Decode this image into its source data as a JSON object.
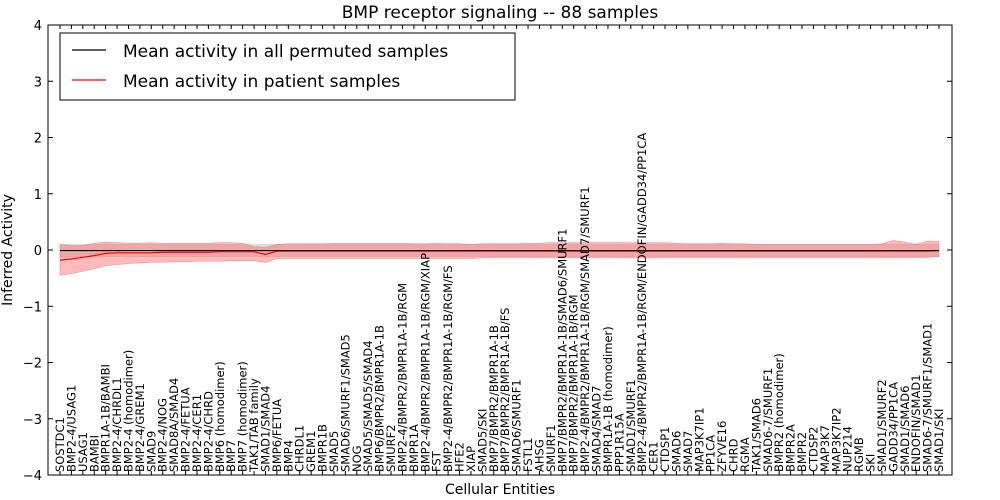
{
  "chart_data": {
    "type": "line",
    "title": "BMP receptor signaling -- 88 samples",
    "xlabel": "Cellular Entities",
    "ylabel": "Inferred Activity",
    "ylim": [
      -4,
      4
    ],
    "yticks": [
      -4,
      -3,
      -2,
      -1,
      0,
      1,
      2,
      3,
      4
    ],
    "legend_position": "top-left",
    "categories": [
      "SOSTDC1",
      "BMP2-4/USAG1",
      "USAG1",
      "BAMBI",
      "BMPR1A-1B/BAMBI",
      "BMP2-4/CHRDL1",
      "BMP2-4 (homodimer)",
      "BMP2-4/GREM1",
      "SMAD9",
      "BMP2-4/NOG",
      "SMAD8A/SMAD4",
      "BMP2-4/FETUA",
      "BMP2-4/CER1",
      "BMP2-4/CHRD",
      "BMP6 (homodimer)",
      "BMP7",
      "BMP7 (homodimer)",
      "TAK1/TAB family",
      "SMAD1/SMAD4",
      "BMP6/FETUA",
      "BMP4",
      "CHRDL1",
      "GREM1",
      "BMPR1B",
      "SMAD5",
      "SMAD6/SMURF1/SMAD5",
      "NOG",
      "SMAD5/SMAD5/SMAD4",
      "BMP6/BMPR2/BMPR1A-1B",
      "SMURF2",
      "BMP2-4/BMPR2/BMPR1A-1B/RGM",
      "BMPR1A",
      "BMP2-4/BMPR2/BMPR1A-1B/RGM/XIAP",
      "FST",
      "BMP2-4/BMPR2/BMPR1A-1B/RGM/FS",
      "HFE2",
      "XIAP",
      "SMAD5/SKI",
      "BMP7/BMPR2/BMPR1A-1B",
      "BMP7/BMPR2/BMPR1A-1B/FS",
      "SMAD6/SMURF1",
      "FSTL1",
      "AHSG",
      "SMURF1",
      "BMP7/BMPR2/BMPR1A-1B/SMAD6/SMURF1",
      "BMP7/BMPR2/BMPR1A-1B/RGM",
      "BMP2-4/BMPR2/BMPR1A-1B/RGM/SMAD7/SMURF1",
      "SMAD4/SMAD7",
      "BMPR1A-1B (homodimer)",
      "PPP1R15A",
      "SMAD1/SMURF1",
      "BMP2-4/BMPR2/BMPR1A-1B/RGM/ENDOFIN/GADD34/PP1CA",
      "CER1",
      "CTDSP1",
      "SMAD6",
      "SMAD7",
      "MAP3K7IP1",
      "PP1CA",
      "ZFYVE16",
      "CHRD",
      "RGMA",
      "TAK1/SMAD6",
      "SMAD6-7/SMURF1",
      "BMPR2 (homodimer)",
      "BMPR2A",
      "BMPR2",
      "CTDSP2",
      "MAP3K7",
      "MAP3K7IP2",
      "NUP214",
      "RGMB",
      "SKI",
      "SMAD1/SMURF2",
      "GADD34/PP1CA",
      "SMAD1/SMAD6",
      "ENDOFIN/SMAD1",
      "SMAD6-7/SMURF1/SMAD1",
      "SMAD1/SKI"
    ],
    "series": [
      {
        "name": "Mean activity in all permuted samples",
        "color": "#000000",
        "values": [
          -0.01,
          -0.01,
          -0.01,
          -0.01,
          -0.01,
          -0.01,
          -0.01,
          -0.01,
          -0.01,
          -0.01,
          -0.01,
          -0.01,
          -0.01,
          -0.01,
          -0.01,
          -0.01,
          -0.01,
          -0.01,
          -0.01,
          -0.01,
          -0.01,
          -0.01,
          -0.01,
          -0.01,
          -0.01,
          -0.01,
          -0.01,
          -0.01,
          -0.01,
          -0.01,
          -0.01,
          -0.01,
          -0.01,
          -0.01,
          -0.01,
          -0.01,
          -0.01,
          -0.01,
          -0.01,
          -0.01,
          -0.01,
          -0.01,
          -0.01,
          -0.01,
          -0.01,
          -0.01,
          -0.01,
          -0.01,
          -0.01,
          -0.01,
          -0.01,
          -0.01,
          -0.01,
          -0.01,
          -0.01,
          -0.01,
          -0.01,
          -0.01,
          -0.01,
          -0.01,
          -0.01,
          -0.01,
          -0.01,
          -0.01,
          -0.01,
          -0.01,
          -0.01,
          -0.01,
          -0.01,
          -0.01,
          -0.01,
          -0.01,
          -0.01,
          -0.01,
          -0.01,
          -0.01,
          -0.01,
          -0.01
        ],
        "band_lower": [
          -0.12,
          -0.12,
          -0.12,
          -0.12,
          -0.12,
          -0.12,
          -0.12,
          -0.12,
          -0.12,
          -0.12,
          -0.12,
          -0.12,
          -0.12,
          -0.12,
          -0.12,
          -0.12,
          -0.12,
          -0.12,
          -0.12,
          -0.12,
          -0.12,
          -0.12,
          -0.12,
          -0.12,
          -0.12,
          -0.12,
          -0.12,
          -0.12,
          -0.12,
          -0.12,
          -0.12,
          -0.12,
          -0.12,
          -0.12,
          -0.12,
          -0.12,
          -0.12,
          -0.12,
          -0.12,
          -0.12,
          -0.12,
          -0.12,
          -0.12,
          -0.12,
          -0.12,
          -0.12,
          -0.12,
          -0.12,
          -0.12,
          -0.12,
          -0.12,
          -0.12,
          -0.12,
          -0.12,
          -0.12,
          -0.12,
          -0.12,
          -0.12,
          -0.12,
          -0.12,
          -0.12,
          -0.12,
          -0.12,
          -0.12,
          -0.12,
          -0.12,
          -0.12,
          -0.12,
          -0.12,
          -0.12,
          -0.12,
          -0.12,
          -0.12,
          -0.12,
          -0.12,
          -0.12,
          -0.12,
          -0.12
        ],
        "band_upper": [
          0.1,
          0.1,
          0.1,
          0.1,
          0.1,
          0.1,
          0.1,
          0.1,
          0.1,
          0.1,
          0.1,
          0.1,
          0.1,
          0.1,
          0.1,
          0.1,
          0.1,
          0.1,
          0.1,
          0.1,
          0.1,
          0.1,
          0.1,
          0.1,
          0.1,
          0.1,
          0.1,
          0.1,
          0.1,
          0.1,
          0.1,
          0.1,
          0.1,
          0.1,
          0.1,
          0.1,
          0.1,
          0.1,
          0.1,
          0.1,
          0.1,
          0.1,
          0.1,
          0.1,
          0.1,
          0.1,
          0.1,
          0.1,
          0.1,
          0.1,
          0.1,
          0.1,
          0.1,
          0.1,
          0.1,
          0.1,
          0.1,
          0.1,
          0.1,
          0.1,
          0.1,
          0.1,
          0.1,
          0.1,
          0.1,
          0.1,
          0.1,
          0.1,
          0.1,
          0.1,
          0.1,
          0.1,
          0.1,
          0.1,
          0.1,
          0.1,
          0.1,
          0.1
        ],
        "band_color": "#bbbbbb"
      },
      {
        "name": "Mean activity in patient samples",
        "color": "#ff0000",
        "values": [
          -0.18,
          -0.16,
          -0.13,
          -0.1,
          -0.06,
          -0.05,
          -0.05,
          -0.05,
          -0.05,
          -0.04,
          -0.04,
          -0.04,
          -0.04,
          -0.04,
          -0.03,
          -0.03,
          -0.03,
          -0.03,
          -0.08,
          -0.02,
          -0.02,
          -0.02,
          -0.02,
          -0.02,
          -0.02,
          -0.02,
          -0.02,
          -0.02,
          -0.02,
          -0.02,
          -0.02,
          -0.02,
          -0.02,
          -0.02,
          -0.02,
          -0.02,
          -0.02,
          -0.02,
          -0.02,
          -0.02,
          -0.02,
          -0.02,
          -0.02,
          -0.02,
          -0.02,
          -0.02,
          -0.02,
          -0.02,
          -0.02,
          -0.02,
          -0.02,
          -0.02,
          -0.02,
          -0.02,
          -0.02,
          -0.02,
          -0.02,
          -0.02,
          -0.02,
          -0.02,
          -0.02,
          -0.02,
          -0.02,
          -0.02,
          -0.02,
          -0.02,
          -0.02,
          -0.02,
          -0.02,
          -0.02,
          -0.02,
          -0.02,
          -0.02,
          -0.02,
          -0.02,
          -0.02,
          -0.02,
          -0.01
        ],
        "band_lower": [
          -0.45,
          -0.42,
          -0.38,
          -0.33,
          -0.28,
          -0.26,
          -0.24,
          -0.23,
          -0.22,
          -0.22,
          -0.21,
          -0.21,
          -0.2,
          -0.2,
          -0.2,
          -0.19,
          -0.19,
          -0.19,
          -0.22,
          -0.15,
          -0.15,
          -0.15,
          -0.15,
          -0.15,
          -0.15,
          -0.15,
          -0.15,
          -0.15,
          -0.15,
          -0.15,
          -0.15,
          -0.15,
          -0.15,
          -0.15,
          -0.15,
          -0.15,
          -0.15,
          -0.14,
          -0.14,
          -0.14,
          -0.14,
          -0.14,
          -0.14,
          -0.14,
          -0.14,
          -0.14,
          -0.14,
          -0.14,
          -0.14,
          -0.14,
          -0.14,
          -0.14,
          -0.14,
          -0.14,
          -0.14,
          -0.14,
          -0.14,
          -0.14,
          -0.14,
          -0.14,
          -0.14,
          -0.14,
          -0.14,
          -0.14,
          -0.14,
          -0.14,
          -0.14,
          -0.14,
          -0.14,
          -0.14,
          -0.14,
          -0.14,
          -0.14,
          -0.14,
          -0.14,
          -0.14,
          -0.13,
          -0.12
        ],
        "band_upper": [
          0.1,
          0.08,
          0.08,
          0.12,
          0.14,
          0.13,
          0.12,
          0.12,
          0.13,
          0.12,
          0.12,
          0.12,
          0.12,
          0.12,
          0.13,
          0.13,
          0.12,
          0.06,
          0.05,
          0.1,
          0.11,
          0.11,
          0.11,
          0.11,
          0.12,
          0.12,
          0.12,
          0.12,
          0.12,
          0.12,
          0.12,
          0.11,
          0.11,
          0.12,
          0.11,
          0.11,
          0.1,
          0.11,
          0.11,
          0.11,
          0.11,
          0.12,
          0.12,
          0.13,
          0.13,
          0.13,
          0.13,
          0.13,
          0.13,
          0.13,
          0.13,
          0.13,
          0.13,
          0.13,
          0.12,
          0.11,
          0.11,
          0.11,
          0.12,
          0.11,
          0.11,
          0.1,
          0.1,
          0.1,
          0.1,
          0.1,
          0.1,
          0.1,
          0.1,
          0.1,
          0.1,
          0.1,
          0.11,
          0.17,
          0.14,
          0.1,
          0.16,
          0.15
        ],
        "band_color": "#ff5555"
      }
    ]
  }
}
